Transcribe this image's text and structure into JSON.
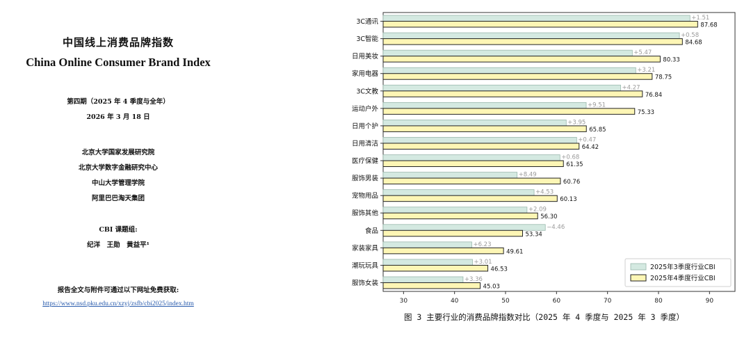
{
  "cover": {
    "title_cn": "中国线上消费品牌指数",
    "title_en": "China Online Consumer Brand Index",
    "issue": "第四期（2025 年 4 季度与全年）",
    "date": "2026 年 3 月 18 日",
    "institutions": [
      "北京大学国家发展研究院",
      "北京大学数字金融研究中心",
      "中山大学管理学院",
      "阿里巴巴淘天集团"
    ],
    "team_label": "CBI 课题组:",
    "authors": "纪洋　王勋　黄益平¹",
    "access_note": "报告全文与附件可通过以下网址免费获取:",
    "url": "https://www.nsd.pku.edu.cn/xzyj/zsfb/cbi2025/index.htm"
  },
  "chart_data": {
    "type": "bar",
    "orientation": "horizontal",
    "caption": "图 3  主要行业的消费品牌指数对比（2025 年 4 季度与 2025 年 3 季度）",
    "categories": [
      "3C通讯",
      "3C智能",
      "日用美妆",
      "家用电器",
      "3C文教",
      "运动户外",
      "日用个护",
      "日用清洁",
      "医疗保健",
      "服饰男装",
      "宠物用品",
      "服饰其他",
      "食品",
      "家装家具",
      "潮玩玩具",
      "服饰女装"
    ],
    "series": [
      {
        "name": "2025年3季度行业CBI",
        "color": "#d4e9e1",
        "values": [
          86.17,
          84.1,
          74.86,
          75.54,
          72.57,
          65.82,
          61.9,
          63.95,
          60.67,
          52.27,
          55.6,
          54.21,
          57.8,
          43.38,
          43.52,
          41.67
        ]
      },
      {
        "name": "2025年4季度行业CBI",
        "color": "#fdf6b5",
        "values": [
          87.68,
          84.68,
          80.33,
          78.75,
          76.84,
          75.33,
          65.85,
          64.42,
          61.35,
          60.76,
          60.13,
          56.3,
          53.34,
          49.61,
          46.53,
          45.03
        ]
      }
    ],
    "change_labels": [
      "+1.51",
      "+0.58",
      "+5.47",
      "+3.21",
      "+4.27",
      "+9.51",
      "+3.95",
      "+0.47",
      "+0.68",
      "+8.49",
      "+4.53",
      "+2.09",
      "−4.46",
      "+6.23",
      "+3.01",
      "+3.36"
    ],
    "value_labels": [
      "87.68",
      "84.68",
      "80.33",
      "78.75",
      "76.84",
      "75.33",
      "65.85",
      "64.42",
      "61.35",
      "60.76",
      "60.13",
      "56.30",
      "53.34",
      "49.61",
      "46.53",
      "45.03"
    ],
    "xticks": [
      30,
      40,
      50,
      60,
      70,
      80,
      90
    ],
    "xlim": [
      26,
      95
    ],
    "grid": false,
    "legend_position": "bottom-right"
  }
}
